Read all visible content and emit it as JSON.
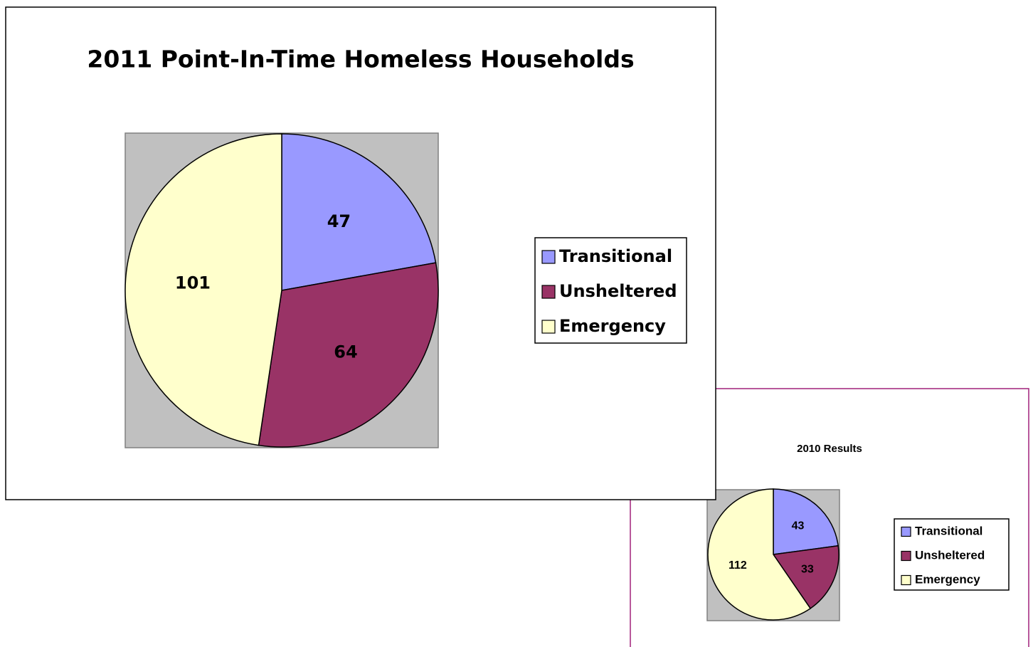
{
  "chart_data": [
    {
      "type": "pie",
      "title": "2011 Point-In-Time Homeless Households",
      "categories": [
        "Transitional",
        "Unsheltered",
        "Emergency"
      ],
      "values": [
        47,
        64,
        101
      ],
      "colors": [
        "#9999ff",
        "#993366",
        "#ffffcc"
      ],
      "legend": "right"
    },
    {
      "type": "pie",
      "title": "2010 Results",
      "categories": [
        "Transitional",
        "Unsheltered",
        "Emergency"
      ],
      "values": [
        43,
        33,
        112
      ],
      "colors": [
        "#9999ff",
        "#993366",
        "#ffffcc"
      ],
      "legend": "right"
    }
  ]
}
